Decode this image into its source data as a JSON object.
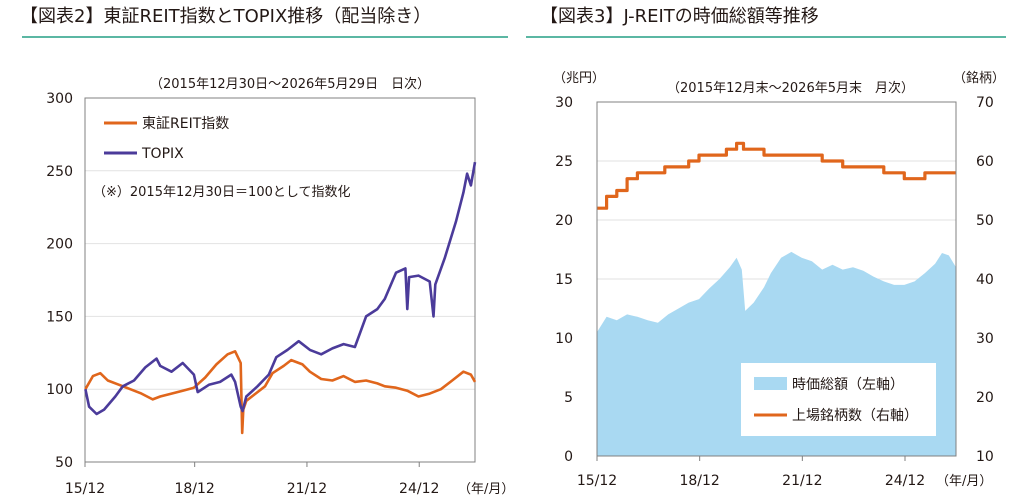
{
  "fig2": {
    "title": "【図表2】東証REIT指数とTOPIX推移（配当除き）",
    "period_note": "（2015年12月30日～2026年5月29日　日次）",
    "annotation": "（※）2015年12月30日＝100として指数化",
    "x_unit": "（年/月）"
  },
  "fig3": {
    "title": "【図表3】J-REITの時価総額等推移",
    "period_note": "（2015年12月末～2026年5月末　月次）",
    "left_unit": "（兆円）",
    "right_unit": "（銘柄）",
    "x_unit": "（年/月）"
  },
  "colors": {
    "reit": "#e0661c",
    "topix": "#4b3b9a",
    "mcap": "#a9d9f2",
    "listed": "#e0661c",
    "rule": "#5bb7a3"
  },
  "chart_data": [
    {
      "type": "line",
      "title": "東証REIT指数とTOPIX推移（配当除き）",
      "x_ticks": [
        "15/12",
        "18/12",
        "21/12",
        "24/12"
      ],
      "x_tick_years": [
        2015.99,
        2018.92,
        2021.92,
        2024.92
      ],
      "x_range": [
        2015.99,
        2026.41
      ],
      "ylim": [
        50,
        300
      ],
      "y_ticks": [
        50,
        100,
        150,
        200,
        250,
        300
      ],
      "grid": true,
      "legend_position": "top-left",
      "series": [
        {
          "name": "東証REIT指数",
          "x": [
            2016.0,
            2016.2,
            2016.4,
            2016.6,
            2016.9,
            2017.2,
            2017.5,
            2017.8,
            2018.0,
            2018.3,
            2018.6,
            2018.9,
            2019.2,
            2019.5,
            2019.8,
            2020.0,
            2020.15,
            2020.19,
            2020.22,
            2020.3,
            2020.5,
            2020.8,
            2021.0,
            2021.3,
            2021.5,
            2021.8,
            2022.0,
            2022.3,
            2022.6,
            2022.9,
            2023.2,
            2023.5,
            2023.8,
            2024.0,
            2024.3,
            2024.6,
            2024.9,
            2025.2,
            2025.5,
            2025.8,
            2026.1,
            2026.3,
            2026.41
          ],
          "values": [
            100,
            109,
            111,
            106,
            103,
            100,
            97,
            93,
            95,
            97,
            99,
            101,
            108,
            117,
            124,
            126,
            118,
            70,
            86,
            92,
            96,
            102,
            111,
            116,
            120,
            117,
            112,
            107,
            106,
            109,
            105,
            106,
            104,
            102,
            101,
            99,
            95,
            97,
            100,
            106,
            112,
            110,
            105
          ]
        },
        {
          "name": "TOPIX",
          "x": [
            2016.0,
            2016.1,
            2016.3,
            2016.5,
            2016.8,
            2017.0,
            2017.3,
            2017.6,
            2017.9,
            2018.0,
            2018.3,
            2018.6,
            2018.9,
            2019.0,
            2019.3,
            2019.6,
            2019.9,
            2020.0,
            2020.15,
            2020.2,
            2020.3,
            2020.6,
            2020.9,
            2021.1,
            2021.4,
            2021.7,
            2022.0,
            2022.3,
            2022.6,
            2022.9,
            2023.2,
            2023.5,
            2023.8,
            2024.0,
            2024.3,
            2024.55,
            2024.6,
            2024.65,
            2024.9,
            2025.2,
            2025.3,
            2025.35,
            2025.6,
            2025.9,
            2026.1,
            2026.2,
            2026.3,
            2026.41
          ],
          "values": [
            100,
            88,
            83,
            86,
            95,
            102,
            106,
            115,
            121,
            116,
            112,
            118,
            110,
            98,
            103,
            105,
            110,
            105,
            88,
            85,
            95,
            102,
            110,
            122,
            127,
            133,
            127,
            124,
            128,
            131,
            129,
            150,
            155,
            162,
            180,
            183,
            155,
            177,
            178,
            174,
            150,
            172,
            190,
            215,
            235,
            248,
            240,
            256
          ]
        }
      ]
    },
    {
      "type": "area",
      "title": "J-REITの時価総額等推移",
      "x_ticks": [
        "15/12",
        "18/12",
        "21/12",
        "24/12"
      ],
      "x_tick_years": [
        2015.92,
        2018.92,
        2021.92,
        2024.92
      ],
      "x_range": [
        2015.92,
        2026.41
      ],
      "ylim": [
        0,
        30
      ],
      "y_ticks": [
        0,
        5,
        10,
        15,
        20,
        25,
        30
      ],
      "y2lim": [
        10,
        70
      ],
      "y2_ticks": [
        10,
        20,
        30,
        40,
        50,
        60,
        70
      ],
      "grid": true,
      "legend_position": "bottom-right",
      "series": [
        {
          "name": "時価総額（左軸）",
          "axis": "left",
          "type": "area",
          "x": [
            2015.92,
            2016.2,
            2016.5,
            2016.8,
            2017.1,
            2017.4,
            2017.7,
            2018.0,
            2018.3,
            2018.6,
            2018.9,
            2019.2,
            2019.5,
            2019.8,
            2020.0,
            2020.15,
            2020.25,
            2020.5,
            2020.8,
            2021.0,
            2021.3,
            2021.6,
            2021.9,
            2022.2,
            2022.5,
            2022.8,
            2023.1,
            2023.4,
            2023.7,
            2024.0,
            2024.3,
            2024.6,
            2024.9,
            2025.2,
            2025.5,
            2025.8,
            2026.0,
            2026.2,
            2026.41
          ],
          "values": [
            10.5,
            11.8,
            11.5,
            12.0,
            11.8,
            11.5,
            11.3,
            12.0,
            12.5,
            13.0,
            13.3,
            14.2,
            15.0,
            16.0,
            16.8,
            15.8,
            12.3,
            13.0,
            14.3,
            15.5,
            16.8,
            17.3,
            16.8,
            16.5,
            15.8,
            16.2,
            15.8,
            16.0,
            15.7,
            15.2,
            14.8,
            14.5,
            14.5,
            14.8,
            15.5,
            16.3,
            17.2,
            17.0,
            16.0
          ]
        },
        {
          "name": "上場銘柄数（右軸）",
          "axis": "right",
          "type": "step",
          "x": [
            2015.92,
            2016.2,
            2016.5,
            2016.8,
            2017.1,
            2017.5,
            2017.9,
            2018.3,
            2018.6,
            2018.9,
            2019.3,
            2019.7,
            2020.0,
            2020.2,
            2020.5,
            2020.8,
            2021.0,
            2021.3,
            2021.9,
            2022.5,
            2023.1,
            2023.7,
            2024.3,
            2024.9,
            2025.5,
            2026.41
          ],
          "values": [
            52,
            54,
            55,
            57,
            58,
            58,
            59,
            59,
            60,
            61,
            61,
            62,
            63,
            62,
            62,
            61,
            61,
            61,
            61,
            60,
            59,
            59,
            58,
            57,
            58,
            58
          ]
        }
      ]
    }
  ]
}
